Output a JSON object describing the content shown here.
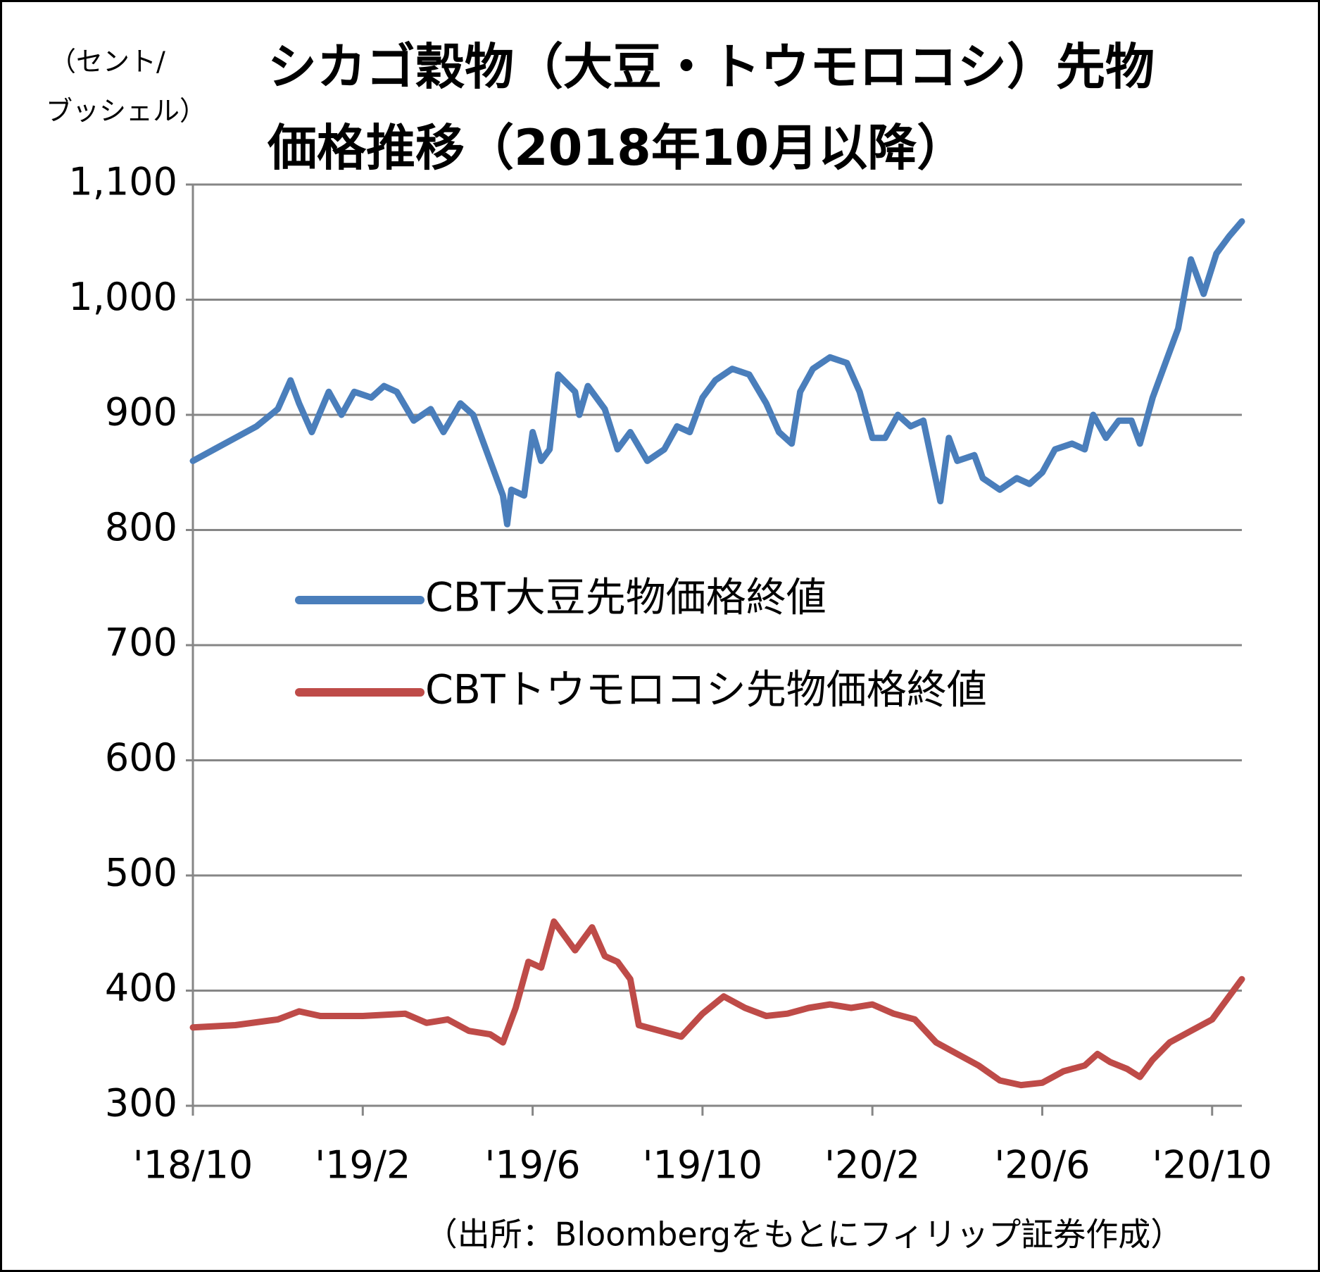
{
  "chart_data": {
    "type": "line",
    "title": [
      "シカゴ穀物（大豆・トウモロコシ）先物",
      "価格推移（2018年10月以降）"
    ],
    "y_label": [
      "（セント/",
      "ブッシェル）"
    ],
    "source": "（出所：Bloombergをもとにフィリップ証券作成）",
    "xlim": [
      0,
      24.7
    ],
    "xticks": [
      {
        "value": 0,
        "label": "'18/10"
      },
      {
        "value": 4,
        "label": "'19/2"
      },
      {
        "value": 8,
        "label": "'19/6"
      },
      {
        "value": 12,
        "label": "'19/10"
      },
      {
        "value": 16,
        "label": "'20/2"
      },
      {
        "value": 20,
        "label": "'20/6"
      },
      {
        "value": 24,
        "label": "'20/10"
      }
    ],
    "ylim": [
      300,
      1100
    ],
    "yticks": [
      300,
      400,
      500,
      600,
      700,
      800,
      900,
      {
        "value": 1000,
        "label": "1,000"
      },
      {
        "value": 1100,
        "label": "1,100"
      }
    ],
    "grid": true,
    "legend": "center",
    "series": [
      {
        "name": "CBT大豆先物価格終値",
        "color": "#4a7ebb",
        "x": [
          0,
          0.5,
          1,
          1.5,
          2,
          2.3,
          2.5,
          2.8,
          3.2,
          3.5,
          3.8,
          4.2,
          4.5,
          4.8,
          5.2,
          5.6,
          5.9,
          6.3,
          6.6,
          6.9,
          7.3,
          7.4,
          7.5,
          7.8,
          8,
          8.2,
          8.4,
          8.6,
          9,
          9.1,
          9.3,
          9.7,
          10,
          10.3,
          10.7,
          11.1,
          11.4,
          11.7,
          12,
          12.3,
          12.7,
          13.1,
          13.5,
          13.8,
          14.1,
          14.3,
          14.6,
          15,
          15.4,
          15.7,
          16,
          16.3,
          16.6,
          16.9,
          17.2,
          17.4,
          17.6,
          17.8,
          18,
          18.4,
          18.6,
          19,
          19.4,
          19.7,
          20,
          20.3,
          20.7,
          21,
          21.2,
          21.5,
          21.8,
          22.1,
          22.3,
          22.6,
          22.9,
          23.2,
          23.5,
          23.8,
          24.1,
          24.4,
          24.7
        ],
        "values": [
          860,
          870,
          880,
          890,
          905,
          930,
          910,
          885,
          920,
          900,
          920,
          915,
          925,
          920,
          895,
          905,
          885,
          910,
          900,
          870,
          830,
          805,
          835,
          830,
          885,
          860,
          870,
          935,
          920,
          900,
          925,
          905,
          870,
          885,
          860,
          870,
          890,
          885,
          915,
          930,
          940,
          935,
          910,
          885,
          875,
          920,
          940,
          950,
          945,
          920,
          880,
          880,
          900,
          890,
          895,
          860,
          825,
          880,
          860,
          865,
          845,
          835,
          845,
          840,
          850,
          870,
          875,
          870,
          900,
          880,
          895,
          895,
          875,
          915,
          945,
          975,
          1035,
          1005,
          1040,
          1055,
          1068
        ]
      },
      {
        "name": "CBTトウモロコシ先物価格終値",
        "color": "#be4b48",
        "x": [
          0,
          1,
          2,
          2.5,
          3,
          4,
          5,
          5.5,
          6,
          6.5,
          7,
          7.3,
          7.6,
          7.9,
          8.2,
          8.5,
          8.8,
          9,
          9.4,
          9.7,
          10,
          10.3,
          10.5,
          11,
          11.5,
          12,
          12.5,
          13,
          13.5,
          14,
          14.5,
          15,
          15.5,
          16,
          16.5,
          17,
          17.5,
          18,
          18.5,
          19,
          19.5,
          20,
          20.5,
          21,
          21.3,
          21.6,
          22,
          22.3,
          22.6,
          23,
          23.5,
          24,
          24.4,
          24.7
        ],
        "values": [
          368,
          370,
          375,
          382,
          378,
          378,
          380,
          372,
          375,
          365,
          362,
          355,
          385,
          425,
          420,
          460,
          445,
          435,
          455,
          430,
          425,
          410,
          370,
          365,
          360,
          380,
          395,
          385,
          378,
          380,
          385,
          388,
          385,
          388,
          380,
          375,
          355,
          345,
          335,
          322,
          318,
          320,
          330,
          335,
          345,
          338,
          332,
          325,
          340,
          355,
          365,
          375,
          395,
          410
        ]
      }
    ]
  }
}
